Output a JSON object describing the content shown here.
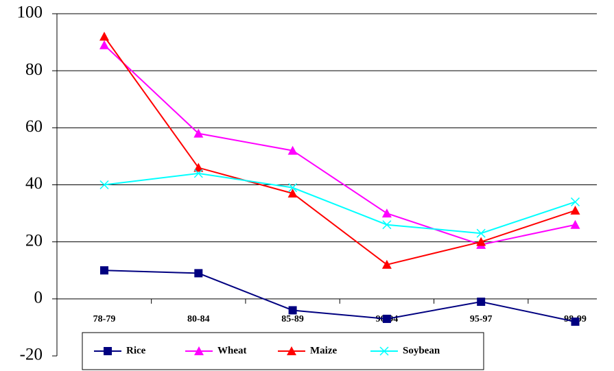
{
  "chart_data": {
    "type": "line",
    "categories": [
      "78-79",
      "80-84",
      "85-89",
      "90-94",
      "95-97",
      "98-99"
    ],
    "series": [
      {
        "name": "Rice",
        "color": "#000080",
        "marker": "square",
        "values": [
          10,
          9,
          -4,
          -7,
          -1,
          -8
        ]
      },
      {
        "name": "Wheat",
        "color": "#ff00ff",
        "marker": "triangle",
        "values": [
          89,
          58,
          52,
          30,
          19,
          26
        ]
      },
      {
        "name": "Maize",
        "color": "#ff0000",
        "marker": "triangle",
        "values": [
          92,
          46,
          37,
          12,
          20,
          31
        ]
      },
      {
        "name": "Soybean",
        "color": "#00ffff",
        "marker": "x",
        "values": [
          40,
          44,
          39,
          26,
          23,
          34
        ]
      }
    ],
    "ylim": [
      -20,
      100
    ],
    "yticks": [
      -20,
      0,
      20,
      40,
      60,
      80,
      100
    ],
    "grid": true
  }
}
